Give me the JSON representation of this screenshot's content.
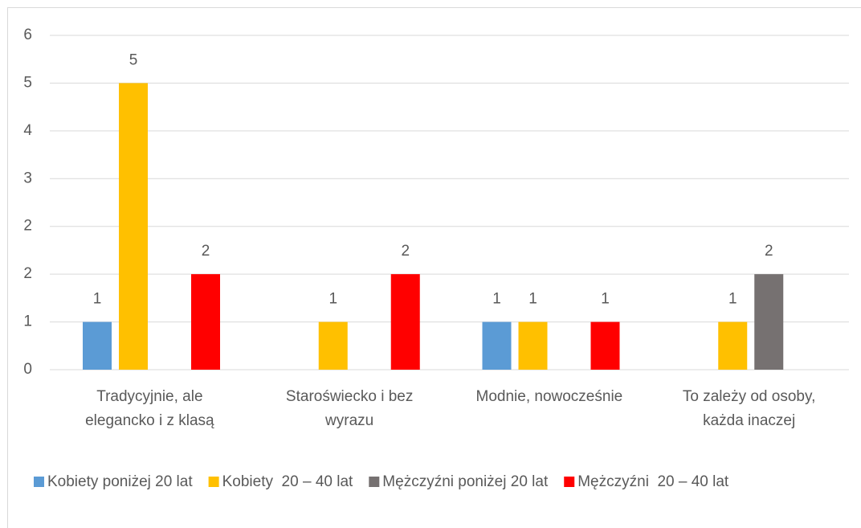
{
  "chart_data": {
    "type": "bar",
    "categories": [
      "Tradycyjnie, ale\nelegancko i z klasą",
      "Staroświecko i bez\nwyrazu",
      "Modnie, nowocześnie",
      "To zależy od osoby,\nkażda inaczej"
    ],
    "series": [
      {
        "name": "Kobiety poniżej 20 lat",
        "color": "#5b9bd5",
        "values": [
          0.8,
          null,
          0.8,
          null
        ],
        "value_labels": [
          "1",
          null,
          "1",
          null
        ]
      },
      {
        "name": "Kobiety  20 – 40 lat",
        "color": "#ffc000",
        "values": [
          4.8,
          0.8,
          0.8,
          0.8
        ],
        "value_labels": [
          "5",
          "1",
          "1",
          "1"
        ]
      },
      {
        "name": "Mężczyźni poniżej 20 lat",
        "color": "#767171",
        "values": [
          null,
          null,
          null,
          1.6
        ],
        "value_labels": [
          null,
          null,
          null,
          "2"
        ]
      },
      {
        "name": "Mężczyźni  20 – 40 lat",
        "color": "#ff0000",
        "values": [
          1.6,
          1.6,
          0.8,
          null
        ],
        "value_labels": [
          "2",
          "2",
          "1",
          null
        ]
      }
    ],
    "ylim": [
      0,
      5.6
    ],
    "yticks": [
      0,
      {
        "value": 0.8,
        "label": "1"
      },
      {
        "value": 1.6,
        "label": "2"
      },
      {
        "value": 2.4,
        "label": "2"
      },
      {
        "value": 3.2,
        "label": "3"
      },
      4,
      {
        "value": 4.8,
        "label": "5"
      },
      {
        "value": 5.6,
        "label": "6"
      }
    ],
    "grid": true,
    "legend": "bottom"
  }
}
